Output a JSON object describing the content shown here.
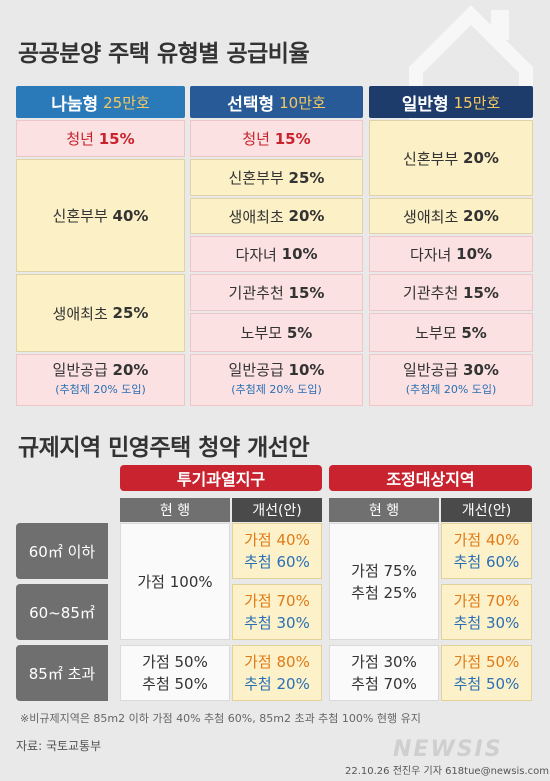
{
  "title1": "공공분양 주택 유형별 공급비율",
  "top": {
    "columns": [
      {
        "name": "나눔형",
        "amount": "25만호"
      },
      {
        "name": "선택형",
        "amount": "10만호"
      },
      {
        "name": "일반형",
        "amount": "15만호"
      }
    ],
    "a": {
      "youth_label": "청년",
      "youth_val": "15%",
      "newly_label": "신혼부부",
      "newly_val": "40%",
      "first_label": "생애최초",
      "first_val": "25%",
      "gen_label": "일반공급",
      "gen_val": "20%",
      "note": "(추첨제 20% 도입)"
    },
    "b": {
      "youth_label": "청년",
      "youth_val": "15%",
      "newly_label": "신혼부부",
      "newly_val": "25%",
      "first_label": "생애최초",
      "first_val": "20%",
      "multi_label": "다자녀",
      "multi_val": "10%",
      "inst_label": "기관추천",
      "inst_val": "15%",
      "elder_label": "노부모",
      "elder_val": "5%",
      "gen_label": "일반공급",
      "gen_val": "10%",
      "note": "(추첨제 20% 도입)"
    },
    "c": {
      "newly_label": "신혼부부",
      "newly_val": "20%",
      "first_label": "생애최초",
      "first_val": "20%",
      "multi_label": "다자녀",
      "multi_val": "10%",
      "inst_label": "기관추천",
      "inst_val": "15%",
      "elder_label": "노부모",
      "elder_val": "5%",
      "gen_label": "일반공급",
      "gen_val": "30%",
      "note": "(추첨제 20% 도입)"
    }
  },
  "title2": "규제지역 민영주택 청약 개선안",
  "bottom": {
    "region1": "투기과열지구",
    "region2": "조정대상지역",
    "current": "현 행",
    "improve": "개선(안)",
    "rows": [
      "60㎡ 이하",
      "60~85㎡",
      "85㎡ 초과"
    ],
    "gajeom": "가점",
    "chucheom": "추첨",
    "r1_cur_small": "가점 100%",
    "r1_cur_large_1": "가점 50%",
    "r1_cur_large_2": "추첨 50%",
    "r1_imp": [
      [
        "40%",
        "60%"
      ],
      [
        "70%",
        "30%"
      ],
      [
        "80%",
        "20%"
      ]
    ],
    "r2_cur_small_1": "가점 75%",
    "r2_cur_small_2": "추첨 25%",
    "r2_cur_large_1": "가점 30%",
    "r2_cur_large_2": "추첨 70%",
    "r2_imp": [
      [
        "40%",
        "60%"
      ],
      [
        "70%",
        "30%"
      ],
      [
        "50%",
        "50%"
      ]
    ]
  },
  "footnote": "※비규제지역은 85m2 이하 가점 40% 추첨 60%, 85m2 초과 추첨 100% 현행 유지",
  "source": "자료: 국토교통부",
  "logo": "NEWSIS",
  "credit": "22.10.26 전진우 기자 618tue@newsis.com"
}
